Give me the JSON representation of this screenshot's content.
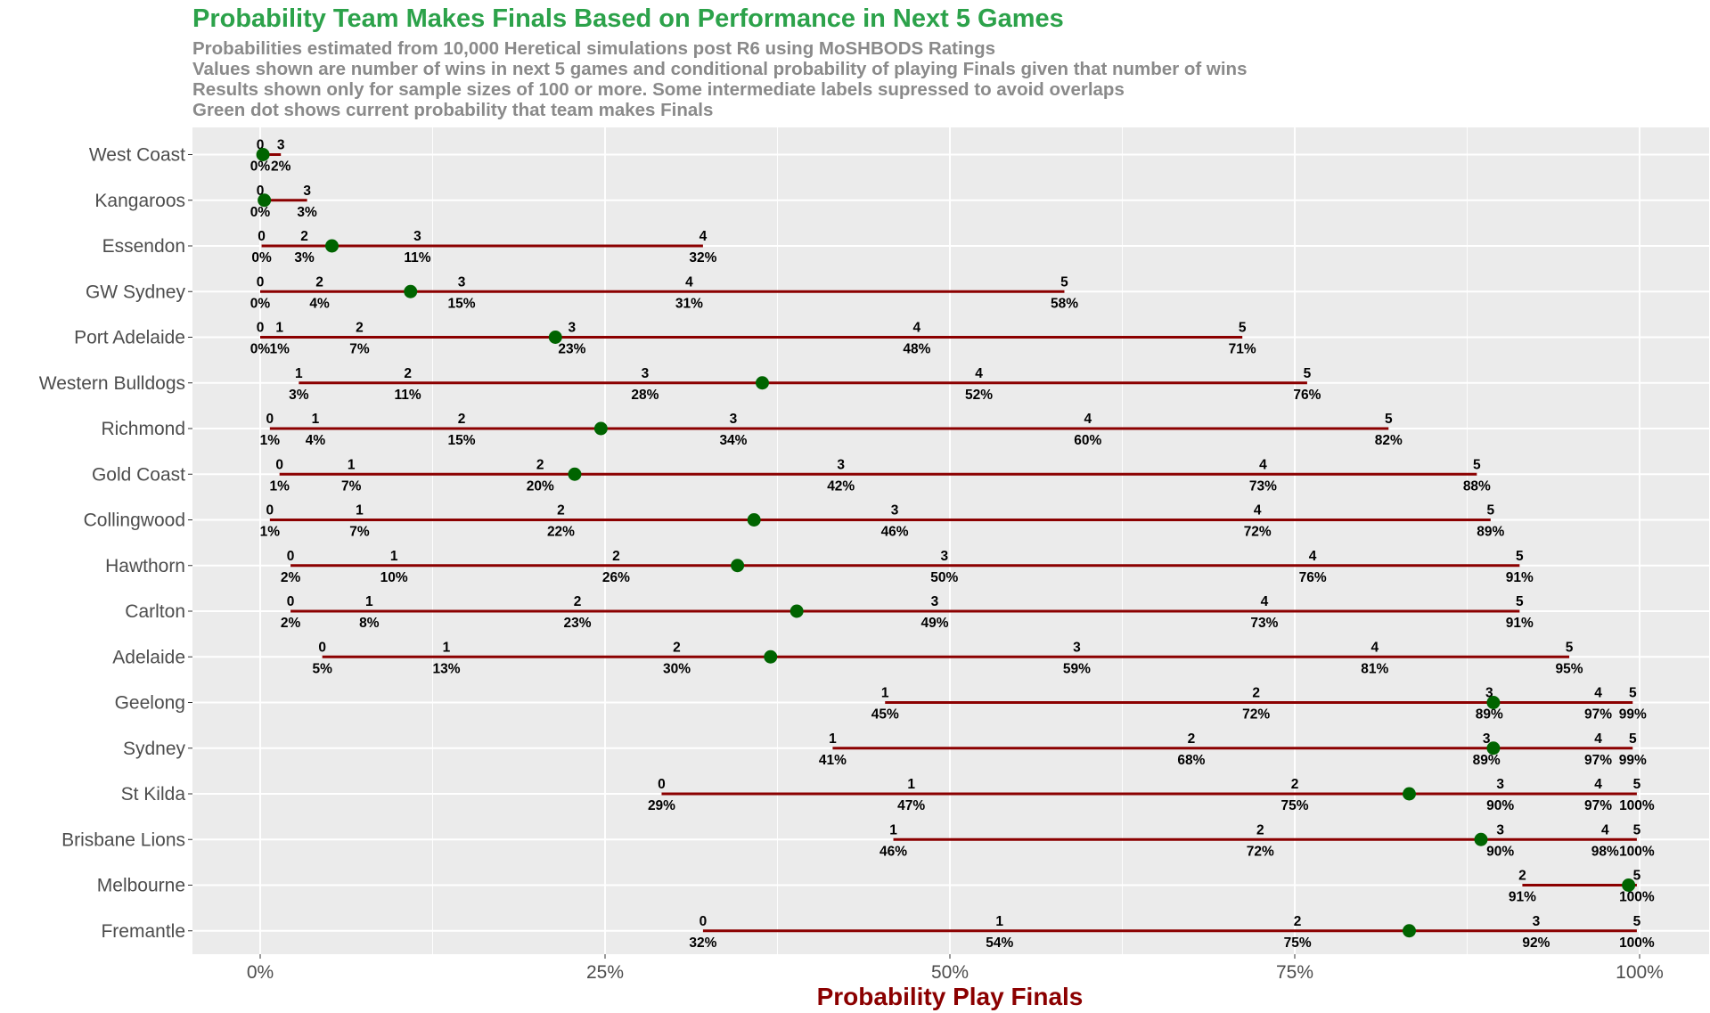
{
  "chart_data": {
    "type": "dot-range",
    "title": "Probability Team Makes Finals Based on Performance in Next 5 Games",
    "subtitle": [
      "Probabilities estimated from 10,000 Heretical simulations post R6 using MoSHBODS Ratings",
      "Values shown are number of wins in next 5 games and conditional probability of playing Finals given that number of wins",
      "Results shown only for sample sizes of 100 or more. Some intermediate labels supressed to avoid overlaps",
      "Green dot shows current probability that team makes Finals"
    ],
    "xlabel": "Probability Play Finals",
    "xlim": [
      -0.05,
      1.05
    ],
    "x_ticks": [
      0,
      0.25,
      0.5,
      0.75,
      1.0
    ],
    "x_tick_labels": [
      "0%",
      "25%",
      "50%",
      "75%",
      "100%"
    ],
    "line_color": "#8b0000",
    "dot_color": "#006400",
    "panel_color": "#ebebeb",
    "grid_color": "#ffffff",
    "teams": [
      {
        "name": "West Coast",
        "current": 0.002,
        "points": [
          {
            "wins": "0",
            "label": "0%",
            "value": 0.0
          },
          {
            "wins": "3",
            "label": "2%",
            "value": 0.015
          }
        ]
      },
      {
        "name": "Kangaroos",
        "current": 0.003,
        "points": [
          {
            "wins": "0",
            "label": "0%",
            "value": 0.0
          },
          {
            "wins": "3",
            "label": "3%",
            "value": 0.034
          }
        ]
      },
      {
        "name": "Essendon",
        "current": 0.052,
        "points": [
          {
            "wins": "0",
            "label": "0%",
            "value": 0.001
          },
          {
            "wins": "2",
            "label": "3%",
            "value": 0.032
          },
          {
            "wins": "3",
            "label": "11%",
            "value": 0.114
          },
          {
            "wins": "4",
            "label": "32%",
            "value": 0.321
          }
        ]
      },
      {
        "name": "GW Sydney",
        "current": 0.109,
        "points": [
          {
            "wins": "0",
            "label": "0%",
            "value": 0.0
          },
          {
            "wins": "2",
            "label": "4%",
            "value": 0.043
          },
          {
            "wins": "3",
            "label": "15%",
            "value": 0.146
          },
          {
            "wins": "4",
            "label": "31%",
            "value": 0.311
          },
          {
            "wins": "5",
            "label": "58%",
            "value": 0.583
          }
        ]
      },
      {
        "name": "Port Adelaide",
        "current": 0.214,
        "points": [
          {
            "wins": "0",
            "label": "0%",
            "value": 0.0
          },
          {
            "wins": "1",
            "label": "1%",
            "value": 0.014
          },
          {
            "wins": "2",
            "label": "7%",
            "value": 0.072
          },
          {
            "wins": "3",
            "label": "23%",
            "value": 0.226
          },
          {
            "wins": "4",
            "label": "48%",
            "value": 0.476
          },
          {
            "wins": "5",
            "label": "71%",
            "value": 0.712
          }
        ]
      },
      {
        "name": "Western Bulldogs",
        "current": 0.364,
        "points": [
          {
            "wins": "1",
            "label": "3%",
            "value": 0.028
          },
          {
            "wins": "2",
            "label": "11%",
            "value": 0.107
          },
          {
            "wins": "3",
            "label": "28%",
            "value": 0.279
          },
          {
            "wins": "4",
            "label": "52%",
            "value": 0.521
          },
          {
            "wins": "5",
            "label": "76%",
            "value": 0.759
          }
        ]
      },
      {
        "name": "Richmond",
        "current": 0.247,
        "points": [
          {
            "wins": "0",
            "label": "1%",
            "value": 0.007
          },
          {
            "wins": "1",
            "label": "4%",
            "value": 0.04
          },
          {
            "wins": "2",
            "label": "15%",
            "value": 0.146
          },
          {
            "wins": "3",
            "label": "34%",
            "value": 0.343
          },
          {
            "wins": "4",
            "label": "60%",
            "value": 0.6
          },
          {
            "wins": "5",
            "label": "82%",
            "value": 0.818
          }
        ]
      },
      {
        "name": "Gold Coast",
        "current": 0.228,
        "points": [
          {
            "wins": "0",
            "label": "1%",
            "value": 0.014
          },
          {
            "wins": "1",
            "label": "7%",
            "value": 0.066
          },
          {
            "wins": "2",
            "label": "20%",
            "value": 0.203
          },
          {
            "wins": "3",
            "label": "42%",
            "value": 0.421
          },
          {
            "wins": "4",
            "label": "73%",
            "value": 0.727
          },
          {
            "wins": "5",
            "label": "88%",
            "value": 0.882
          }
        ]
      },
      {
        "name": "Collingwood",
        "current": 0.358,
        "points": [
          {
            "wins": "0",
            "label": "1%",
            "value": 0.007
          },
          {
            "wins": "1",
            "label": "7%",
            "value": 0.072
          },
          {
            "wins": "2",
            "label": "22%",
            "value": 0.218
          },
          {
            "wins": "3",
            "label": "46%",
            "value": 0.46
          },
          {
            "wins": "4",
            "label": "72%",
            "value": 0.723
          },
          {
            "wins": "5",
            "label": "89%",
            "value": 0.892
          }
        ]
      },
      {
        "name": "Hawthorn",
        "current": 0.346,
        "points": [
          {
            "wins": "0",
            "label": "2%",
            "value": 0.022
          },
          {
            "wins": "1",
            "label": "10%",
            "value": 0.097
          },
          {
            "wins": "2",
            "label": "26%",
            "value": 0.258
          },
          {
            "wins": "3",
            "label": "50%",
            "value": 0.496
          },
          {
            "wins": "4",
            "label": "76%",
            "value": 0.763
          },
          {
            "wins": "5",
            "label": "91%",
            "value": 0.913
          }
        ]
      },
      {
        "name": "Carlton",
        "current": 0.389,
        "points": [
          {
            "wins": "0",
            "label": "2%",
            "value": 0.022
          },
          {
            "wins": "1",
            "label": "8%",
            "value": 0.079
          },
          {
            "wins": "2",
            "label": "23%",
            "value": 0.23
          },
          {
            "wins": "3",
            "label": "49%",
            "value": 0.489
          },
          {
            "wins": "4",
            "label": "73%",
            "value": 0.728
          },
          {
            "wins": "5",
            "label": "91%",
            "value": 0.913
          }
        ]
      },
      {
        "name": "Adelaide",
        "current": 0.37,
        "points": [
          {
            "wins": "0",
            "label": "5%",
            "value": 0.045
          },
          {
            "wins": "1",
            "label": "13%",
            "value": 0.135
          },
          {
            "wins": "2",
            "label": "30%",
            "value": 0.302
          },
          {
            "wins": "3",
            "label": "59%",
            "value": 0.592
          },
          {
            "wins": "4",
            "label": "81%",
            "value": 0.808
          },
          {
            "wins": "5",
            "label": "95%",
            "value": 0.949
          }
        ]
      },
      {
        "name": "Geelong",
        "current": 0.894,
        "points": [
          {
            "wins": "1",
            "label": "45%",
            "value": 0.453
          },
          {
            "wins": "2",
            "label": "72%",
            "value": 0.722
          },
          {
            "wins": "3",
            "label": "89%",
            "value": 0.891
          },
          {
            "wins": "4",
            "label": "97%",
            "value": 0.97
          },
          {
            "wins": "5",
            "label": "99%",
            "value": 0.995
          }
        ]
      },
      {
        "name": "Sydney",
        "current": 0.894,
        "points": [
          {
            "wins": "1",
            "label": "41%",
            "value": 0.415
          },
          {
            "wins": "2",
            "label": "68%",
            "value": 0.675
          },
          {
            "wins": "3",
            "label": "89%",
            "value": 0.889
          },
          {
            "wins": "4",
            "label": "97%",
            "value": 0.97
          },
          {
            "wins": "5",
            "label": "99%",
            "value": 0.995
          }
        ]
      },
      {
        "name": "St Kilda",
        "current": 0.833,
        "points": [
          {
            "wins": "0",
            "label": "29%",
            "value": 0.291
          },
          {
            "wins": "1",
            "label": "47%",
            "value": 0.472
          },
          {
            "wins": "2",
            "label": "75%",
            "value": 0.75
          },
          {
            "wins": "3",
            "label": "90%",
            "value": 0.899
          },
          {
            "wins": "4",
            "label": "97%",
            "value": 0.97
          },
          {
            "wins": "5",
            "label": "100%",
            "value": 0.998
          }
        ]
      },
      {
        "name": "Brisbane Lions",
        "current": 0.885,
        "points": [
          {
            "wins": "1",
            "label": "46%",
            "value": 0.459
          },
          {
            "wins": "2",
            "label": "72%",
            "value": 0.725
          },
          {
            "wins": "3",
            "label": "90%",
            "value": 0.899
          },
          {
            "wins": "4",
            "label": "98%",
            "value": 0.975
          },
          {
            "wins": "5",
            "label": "100%",
            "value": 0.998
          }
        ]
      },
      {
        "name": "Melbourne",
        "current": 0.992,
        "points": [
          {
            "wins": "2",
            "label": "91%",
            "value": 0.915
          },
          {
            "wins": "5",
            "label": "100%",
            "value": 0.998
          }
        ]
      },
      {
        "name": "Fremantle",
        "current": 0.833,
        "points": [
          {
            "wins": "0",
            "label": "32%",
            "value": 0.321
          },
          {
            "wins": "1",
            "label": "54%",
            "value": 0.536
          },
          {
            "wins": "2",
            "label": "75%",
            "value": 0.752
          },
          {
            "wins": "3",
            "label": "92%",
            "value": 0.925
          },
          {
            "wins": "5",
            "label": "100%",
            "value": 0.998
          }
        ]
      }
    ]
  }
}
